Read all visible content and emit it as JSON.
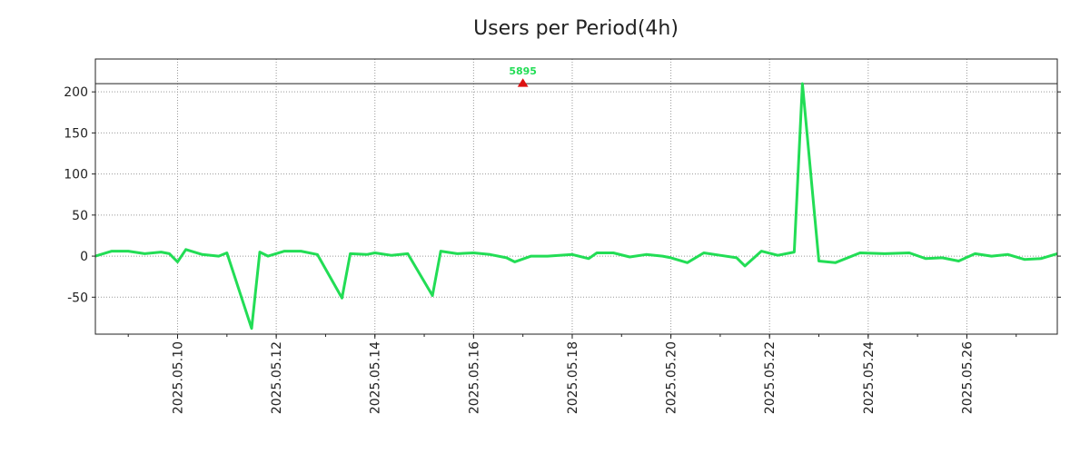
{
  "chart_data": {
    "type": "line",
    "title": "Users per Period(4h)",
    "xlabel": "",
    "ylabel": "",
    "xlim": [
      "2025-05-08 08:00",
      "2025-05-27 20:00"
    ],
    "ylim": [
      -95,
      240
    ],
    "yticks": [
      200,
      150,
      100,
      50,
      0,
      -50
    ],
    "xticks": [
      "2025.05.10",
      "2025.05.12",
      "2025.05.14",
      "2025.05.16",
      "2025.05.18",
      "2025.05.20",
      "2025.05.22",
      "2025.05.24",
      "2025.05.26"
    ],
    "grid": true,
    "reference_line": 210,
    "peak_annotation": {
      "label": "5895",
      "x": "2025-05-17 00:00",
      "y": 210
    },
    "colors": {
      "line": "#22dd55",
      "marker": "#dd1111",
      "annotation": "#22dd55",
      "grid": "#999999",
      "reference": "#222222"
    },
    "series": [
      {
        "points": [
          [
            "2025-05-08 08:00",
            0
          ],
          [
            "2025-05-08 16:00",
            6
          ],
          [
            "2025-05-09 00:00",
            6
          ],
          [
            "2025-05-09 08:00",
            3
          ],
          [
            "2025-05-09 16:00",
            5
          ],
          [
            "2025-05-09 20:00",
            3
          ],
          [
            "2025-05-10 00:00",
            -7
          ],
          [
            "2025-05-10 04:00",
            8
          ],
          [
            "2025-05-10 12:00",
            2
          ],
          [
            "2025-05-10 20:00",
            0
          ],
          [
            "2025-05-11 00:00",
            4
          ],
          [
            "2025-05-11 12:00",
            -88
          ],
          [
            "2025-05-11 16:00",
            5
          ],
          [
            "2025-05-11 20:00",
            0
          ],
          [
            "2025-05-12 04:00",
            6
          ],
          [
            "2025-05-12 12:00",
            6
          ],
          [
            "2025-05-12 20:00",
            2
          ],
          [
            "2025-05-13 08:00",
            -51
          ],
          [
            "2025-05-13 12:00",
            3
          ],
          [
            "2025-05-13 20:00",
            2
          ],
          [
            "2025-05-14 00:00",
            4
          ],
          [
            "2025-05-14 08:00",
            1
          ],
          [
            "2025-05-14 16:00",
            3
          ],
          [
            "2025-05-15 04:00",
            -48
          ],
          [
            "2025-05-15 08:00",
            6
          ],
          [
            "2025-05-15 16:00",
            3
          ],
          [
            "2025-05-16 00:00",
            4
          ],
          [
            "2025-05-16 08:00",
            2
          ],
          [
            "2025-05-16 16:00",
            -2
          ],
          [
            "2025-05-16 20:00",
            -7
          ],
          [
            "2025-05-17 04:00",
            0
          ],
          [
            "2025-05-17 12:00",
            0
          ],
          [
            "2025-05-18 00:00",
            2
          ],
          [
            "2025-05-18 08:00",
            -3
          ],
          [
            "2025-05-18 12:00",
            4
          ],
          [
            "2025-05-18 20:00",
            4
          ],
          [
            "2025-05-19 04:00",
            -1
          ],
          [
            "2025-05-19 12:00",
            2
          ],
          [
            "2025-05-19 20:00",
            0
          ],
          [
            "2025-05-20 00:00",
            -2
          ],
          [
            "2025-05-20 08:00",
            -8
          ],
          [
            "2025-05-20 16:00",
            4
          ],
          [
            "2025-05-21 00:00",
            1
          ],
          [
            "2025-05-21 08:00",
            -2
          ],
          [
            "2025-05-21 12:00",
            -12
          ],
          [
            "2025-05-21 20:00",
            6
          ],
          [
            "2025-05-22 04:00",
            1
          ],
          [
            "2025-05-22 12:00",
            5
          ],
          [
            "2025-05-22 16:00",
            210
          ],
          [
            "2025-05-23 00:00",
            -6
          ],
          [
            "2025-05-23 08:00",
            -8
          ],
          [
            "2025-05-23 20:00",
            4
          ],
          [
            "2025-05-24 08:00",
            3
          ],
          [
            "2025-05-24 20:00",
            4
          ],
          [
            "2025-05-25 04:00",
            -3
          ],
          [
            "2025-05-25 12:00",
            -2
          ],
          [
            "2025-05-25 20:00",
            -6
          ],
          [
            "2025-05-26 04:00",
            3
          ],
          [
            "2025-05-26 12:00",
            0
          ],
          [
            "2025-05-26 20:00",
            2
          ],
          [
            "2025-05-27 04:00",
            -4
          ],
          [
            "2025-05-27 12:00",
            -3
          ],
          [
            "2025-05-27 20:00",
            3
          ]
        ]
      }
    ]
  }
}
